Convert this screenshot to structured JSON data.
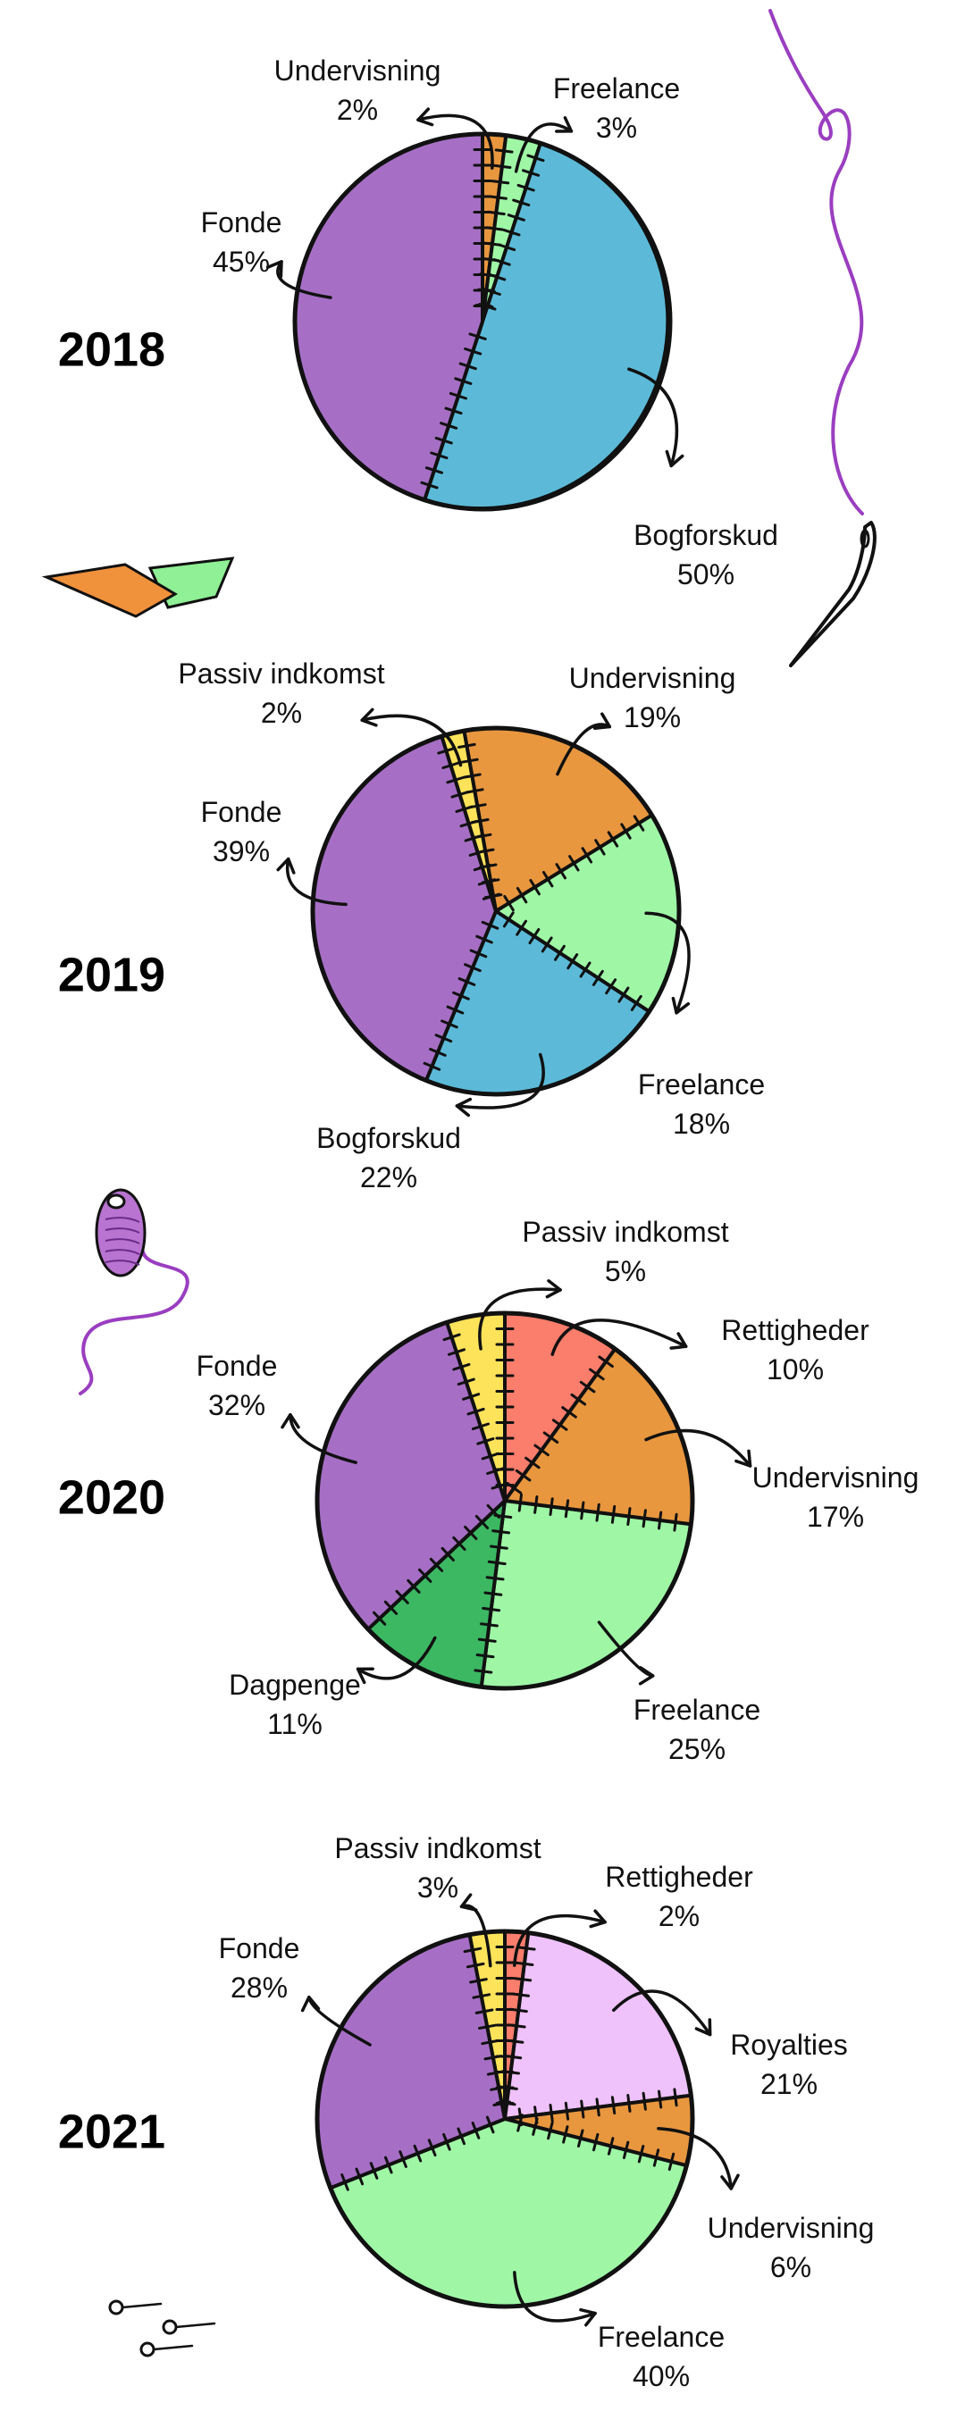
{
  "chart_data": [
    {
      "type": "pie",
      "year": "2018",
      "slices": [
        {
          "label": "Undervisning",
          "value": 2,
          "pct": "2%",
          "color": "#e8973f"
        },
        {
          "label": "Freelance",
          "value": 3,
          "pct": "3%",
          "color": "#9ff7a6"
        },
        {
          "label": "Bogforskud",
          "value": 50,
          "pct": "50%",
          "color": "#5cbad8"
        },
        {
          "label": "Fonde",
          "value": 45,
          "pct": "45%",
          "color": "#a66fc5"
        }
      ]
    },
    {
      "type": "pie",
      "year": "2019",
      "slices": [
        {
          "label": "Undervisning",
          "value": 19,
          "pct": "19%",
          "color": "#e8973f"
        },
        {
          "label": "Freelance",
          "value": 18,
          "pct": "18%",
          "color": "#9ff7a6"
        },
        {
          "label": "Bogforskud",
          "value": 22,
          "pct": "22%",
          "color": "#5cbad8"
        },
        {
          "label": "Fonde",
          "value": 39,
          "pct": "39%",
          "color": "#a66fc5"
        },
        {
          "label": "Passiv indkomst",
          "value": 2,
          "pct": "2%",
          "color": "#fce35a"
        }
      ]
    },
    {
      "type": "pie",
      "year": "2020",
      "slices": [
        {
          "label": "Rettigheder",
          "value": 10,
          "pct": "10%",
          "color": "#fb7d6c"
        },
        {
          "label": "Undervisning",
          "value": 17,
          "pct": "17%",
          "color": "#e8973f"
        },
        {
          "label": "Freelance",
          "value": 25,
          "pct": "25%",
          "color": "#9ff7a6"
        },
        {
          "label": "Dagpenge",
          "value": 11,
          "pct": "11%",
          "color": "#3cb863"
        },
        {
          "label": "Fonde",
          "value": 32,
          "pct": "32%",
          "color": "#a66fc5"
        },
        {
          "label": "Passiv indkomst",
          "value": 5,
          "pct": "5%",
          "color": "#fce35a"
        }
      ]
    },
    {
      "type": "pie",
      "year": "2021",
      "slices": [
        {
          "label": "Rettigheder",
          "value": 2,
          "pct": "2%",
          "color": "#fb7d6c"
        },
        {
          "label": "Royalties",
          "value": 21,
          "pct": "21%",
          "color": "#efc2fb"
        },
        {
          "label": "Undervisning",
          "value": 6,
          "pct": "6%",
          "color": "#e8973f"
        },
        {
          "label": "Freelance",
          "value": 40,
          "pct": "40%",
          "color": "#9ff7a6"
        },
        {
          "label": "Fonde",
          "value": 28,
          "pct": "28%",
          "color": "#a66fc5"
        },
        {
          "label": "Passiv indkomst",
          "value": 3,
          "pct": "3%",
          "color": "#fce35a"
        }
      ]
    }
  ],
  "decorations": {
    "thread_color": "#9a3ec0",
    "bobbin_color": "#b874d0",
    "paper_colors": [
      "#f0913c",
      "#8ff095"
    ]
  }
}
